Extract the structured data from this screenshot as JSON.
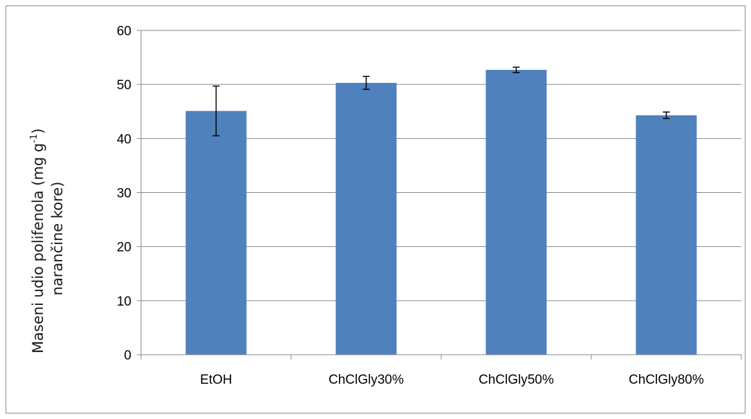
{
  "chart_data": {
    "type": "bar",
    "categories": [
      "EtOH",
      "ChClGly30%",
      "ChClGly50%",
      "ChClGly80%"
    ],
    "values": [
      45.1,
      50.3,
      52.7,
      44.3
    ],
    "error": [
      4.6,
      1.2,
      0.5,
      0.6
    ],
    "ylabel_line1": "Maseni udio polifenola (mg g",
    "ylabel_sup": "-1",
    "ylabel_line2": "narančine kore)",
    "ylim": [
      0,
      60
    ],
    "yticks": [
      0,
      10,
      20,
      30,
      40,
      50,
      60
    ],
    "grid": true,
    "bar_color": "#4f81bd",
    "grid_color": "#868686",
    "error_color": "#000000"
  }
}
